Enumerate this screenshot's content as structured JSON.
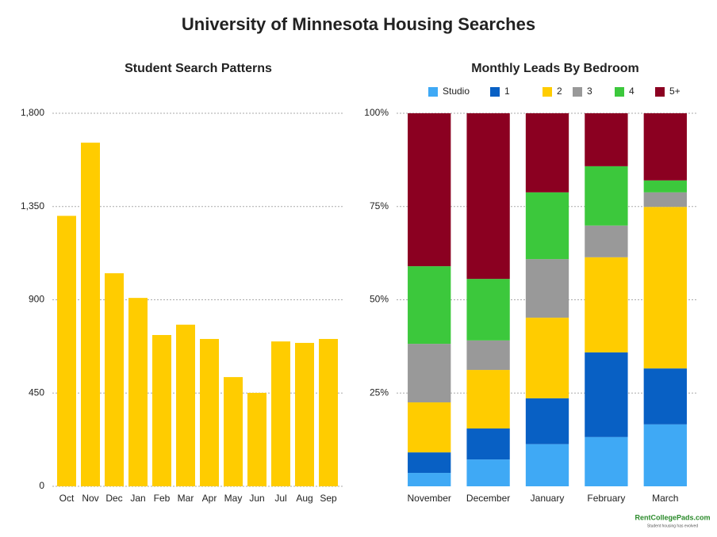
{
  "title": "University of Minnesota Housing Searches",
  "logo": {
    "name": "RentCollegePads.com",
    "tagline": "Student housing has evolved"
  },
  "chart_data": [
    {
      "type": "bar",
      "title": "Student Search Patterns",
      "categories": [
        "Oct",
        "Nov",
        "Dec",
        "Jan",
        "Feb",
        "Mar",
        "Apr",
        "May",
        "Jun",
        "Jul",
        "Aug",
        "Sep"
      ],
      "values": [
        1305,
        1658,
        1028,
        909,
        730,
        780,
        711,
        527,
        451,
        699,
        692,
        711
      ],
      "color": "#ffcc00",
      "ylim": [
        0,
        1800
      ],
      "yticks": [
        0,
        450,
        900,
        {
          "value": 1350,
          "label": "1,350"
        },
        {
          "value": 1800,
          "label": "1,800"
        }
      ],
      "grid": true
    },
    {
      "type": "stacked_bar",
      "title": "Monthly Leads By Bedroom",
      "categories": [
        "November",
        "December",
        "January",
        "February",
        "March"
      ],
      "series": [
        {
          "name": "Studio",
          "color": "#3fa9f5",
          "values": [
            3.6,
            7.2,
            11.3,
            13.2,
            16.6
          ]
        },
        {
          "name": "1",
          "color": "#0860c4",
          "values": [
            5.5,
            8.3,
            12.3,
            22.7,
            15.0
          ]
        },
        {
          "name": "2",
          "color": "#ffcc00",
          "values": [
            13.4,
            15.7,
            21.6,
            25.5,
            43.3
          ]
        },
        {
          "name": "3",
          "color": "#999999",
          "values": [
            15.7,
            7.9,
            15.7,
            8.5,
            3.9
          ]
        },
        {
          "name": "4",
          "color": "#3cc83c",
          "values": [
            20.8,
            16.5,
            17.9,
            15.9,
            3.2
          ]
        },
        {
          "name": "5+",
          "color": "#8b0021",
          "values": [
            41.0,
            44.4,
            21.2,
            14.2,
            18.0
          ]
        }
      ],
      "ylim": [
        0,
        100
      ],
      "yticks": [
        {
          "value": 25,
          "label": "25%"
        },
        {
          "value": 50,
          "label": "50%"
        },
        {
          "value": 75,
          "label": "75%"
        },
        {
          "value": 100,
          "label": "100%"
        }
      ],
      "grid": true,
      "legend": "top"
    }
  ]
}
